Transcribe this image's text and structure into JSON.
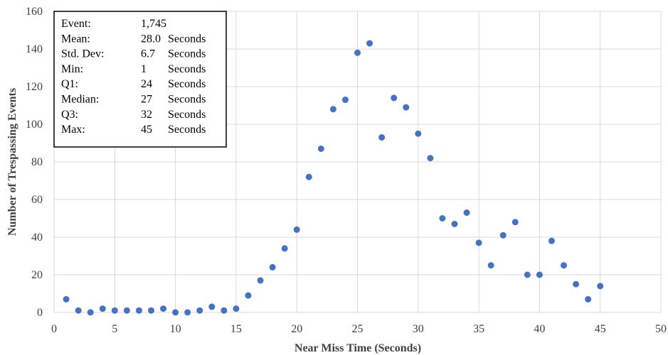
{
  "chart_data": {
    "type": "scatter",
    "xlabel": "Near Miss Time (Seconds)",
    "ylabel": "Number of Trespassing Events",
    "xlim": [
      0,
      50
    ],
    "ylim": [
      0,
      160
    ],
    "x_ticks": [
      0,
      5,
      10,
      15,
      20,
      25,
      30,
      35,
      40,
      45,
      50
    ],
    "y_ticks": [
      0,
      20,
      40,
      60,
      80,
      100,
      120,
      140,
      160
    ],
    "x_tick_labels": [
      "0",
      "5",
      "10",
      "15",
      "20",
      "25",
      "30",
      "35",
      "40",
      "45",
      "50"
    ],
    "y_tick_labels": [
      "0",
      "20",
      "40",
      "60",
      "80",
      "100",
      "120",
      "140",
      "160"
    ],
    "grid": true,
    "series": [
      {
        "color": "#4472C4",
        "x": [
          1,
          2,
          3,
          4,
          5,
          6,
          7,
          8,
          9,
          10,
          11,
          12,
          13,
          14,
          15,
          16,
          17,
          18,
          19,
          20,
          21,
          22,
          23,
          24,
          25,
          26,
          27,
          28,
          29,
          30,
          31,
          32,
          33,
          34,
          35,
          36,
          37,
          38,
          39,
          40,
          41,
          42,
          43,
          44,
          45
        ],
        "y": [
          7,
          1,
          0,
          2,
          1,
          1,
          1,
          1,
          2,
          0,
          0,
          1,
          3,
          1,
          2,
          9,
          17,
          24,
          34,
          44,
          72,
          87,
          108,
          113,
          138,
          143,
          93,
          114,
          109,
          95,
          82,
          50,
          47,
          53,
          37,
          25,
          41,
          48,
          20,
          20,
          38,
          25,
          15,
          7,
          14
        ]
      }
    ],
    "stats_box": {
      "position": "top-left",
      "rows": [
        {
          "label": "Event:",
          "value": "1,745",
          "unit": ""
        },
        {
          "label": "Mean:",
          "value": "28.0",
          "unit": "Seconds"
        },
        {
          "label": "Std. Dev:",
          "value": "6.7",
          "unit": "Seconds"
        },
        {
          "label": "Min:",
          "value": "1",
          "unit": "Seconds"
        },
        {
          "label": "Q1:",
          "value": "24",
          "unit": "Seconds"
        },
        {
          "label": "Median:",
          "value": "27",
          "unit": "Seconds"
        },
        {
          "label": "Q3:",
          "value": "32",
          "unit": "Seconds"
        },
        {
          "label": "Max:",
          "value": "45",
          "unit": "Seconds"
        }
      ]
    }
  }
}
